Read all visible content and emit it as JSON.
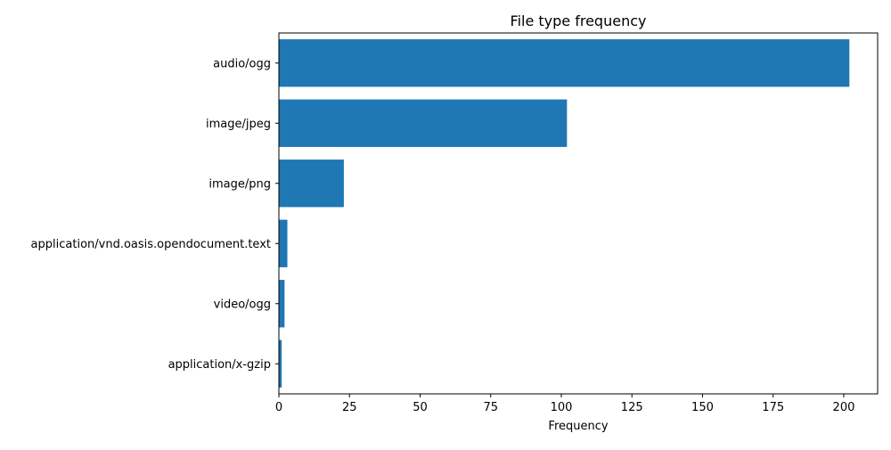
{
  "chart_data": {
    "type": "bar",
    "orientation": "horizontal",
    "title": "File type frequency",
    "xlabel": "Frequency",
    "ylabel": "",
    "categories": [
      "audio/ogg",
      "image/jpeg",
      "image/png",
      "application/vnd.oasis.opendocument.text",
      "video/ogg",
      "application/x-gzip"
    ],
    "values": [
      202,
      102,
      23,
      3,
      2,
      1
    ],
    "xlim": [
      0,
      212
    ],
    "xticks": [
      0,
      25,
      50,
      75,
      100,
      125,
      150,
      175,
      200
    ],
    "grid": false,
    "legend": "none",
    "bar_color": "#1f77b4"
  }
}
